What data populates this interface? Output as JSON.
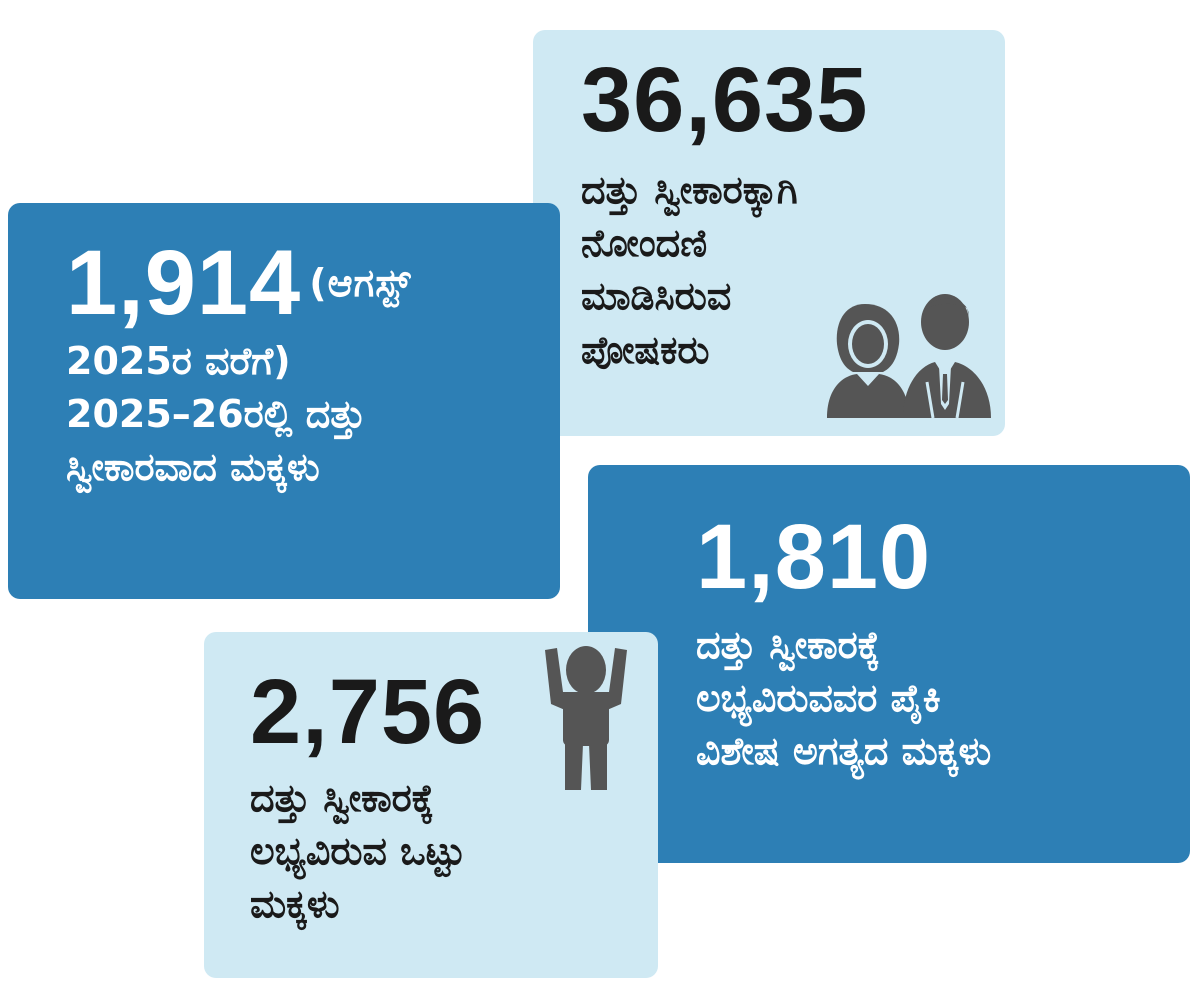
{
  "cards": {
    "registered": {
      "number": "36,635",
      "lines": [
        "ದತ್ತು ಸ್ವೀಕಾರಕ್ಕಾಗಿ",
        "ನೋಂದಣಿ",
        "ಮಾಡಿಸಿರುವ",
        "ಪೋಷಕರು"
      ],
      "icon": "parents-icon"
    },
    "adopted": {
      "number": "1,914",
      "note": "(ಆಗಸ್ಟ್",
      "lines": [
        "2025ರ ವರೆಗೆ)",
        "2025–26ರಲ್ಲಿ ದತ್ತು",
        "ಸ್ವೀಕಾರವಾದ ಮಕ್ಕಳು"
      ]
    },
    "special": {
      "number": "1,810",
      "lines": [
        "ದತ್ತು ಸ್ವೀಕಾರಕ್ಕೆ",
        "ಲಭ್ಯವಿರುವವರ ಪೈಕಿ",
        "ವಿಶೇಷ ಅಗತ್ಯದ ಮಕ್ಕಳು"
      ]
    },
    "total": {
      "number": "2,756",
      "lines": [
        "ದತ್ತು ಸ್ವೀಕಾರಕ್ಕೆ",
        "ಲಭ್ಯವಿರುವ ಒಟ್ಟು",
        "ಮಕ್ಕಳು"
      ],
      "icon": "child-icon"
    }
  },
  "colors": {
    "light_card": "#cfe9f3",
    "dark_card": "#2d7fb5",
    "icon": "#555555",
    "text_dark": "#1a1a1a",
    "text_light": "#ffffff"
  }
}
